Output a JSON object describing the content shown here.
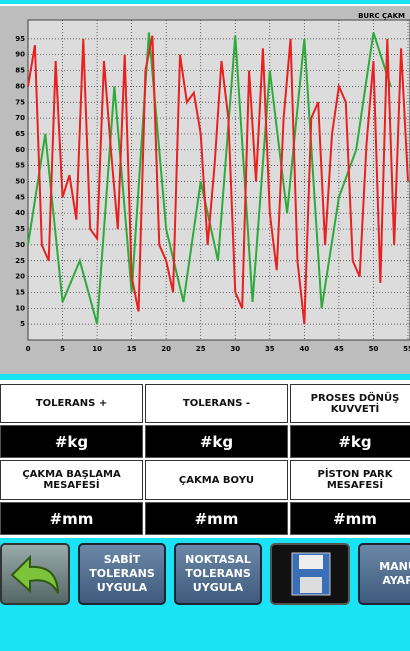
{
  "chart_data": {
    "type": "line",
    "title": "BURC ÇAKM",
    "xlim": [
      0,
      55
    ],
    "xticks": [
      0,
      5,
      10,
      15,
      20,
      25,
      30,
      35,
      40,
      45,
      50,
      55
    ],
    "ylim": [
      0,
      100
    ],
    "yticks": [
      5,
      10,
      15,
      20,
      25,
      30,
      35,
      40,
      45,
      50,
      55,
      60,
      65,
      70,
      75,
      80,
      85,
      90,
      95
    ],
    "grid": true,
    "series": [
      {
        "color": "#2eaa3c",
        "x": [
          0,
          2.5,
          5,
          7.5,
          10,
          12.5,
          15,
          17.5,
          20,
          22.5,
          25,
          27.5,
          30,
          32.5,
          35,
          37.5,
          40,
          42.5,
          45,
          47.5,
          50,
          52.5
        ],
        "values": [
          30,
          65,
          12,
          25,
          5,
          80,
          15,
          97,
          35,
          12,
          50,
          25,
          96,
          12,
          85,
          40,
          95,
          10,
          45,
          60,
          97,
          80
        ]
      },
      {
        "color": "#e82020",
        "x": [
          0,
          1,
          2,
          3,
          4,
          5,
          6,
          7,
          8,
          9,
          10,
          11,
          12,
          13,
          14,
          15,
          16,
          17,
          18,
          19,
          20,
          21,
          22,
          23,
          24,
          25,
          26,
          27,
          28,
          29,
          30,
          31,
          32,
          33,
          34,
          35,
          36,
          37,
          38,
          39,
          40,
          41,
          42,
          43,
          44,
          45,
          46,
          47,
          48,
          49,
          50,
          51,
          52,
          53,
          54,
          55
        ],
        "values": [
          80,
          93,
          30,
          25,
          88,
          45,
          52,
          38,
          95,
          35,
          32,
          88,
          60,
          35,
          90,
          20,
          9,
          85,
          96,
          30,
          25,
          15,
          90,
          75,
          78,
          65,
          30,
          55,
          88,
          70,
          15,
          10,
          85,
          50,
          92,
          40,
          22,
          70,
          95,
          25,
          5,
          70,
          75,
          30,
          65,
          80,
          75,
          25,
          20,
          62,
          88,
          18,
          95,
          30,
          92,
          50
        ]
      }
    ]
  },
  "table": {
    "rows": [
      [
        "TOLERANS +",
        "TOLERANS -",
        "PROSES DÖNÜŞ KUVVETİ"
      ],
      [
        "#kg",
        "#kg",
        "#kg"
      ],
      [
        "ÇAKMA BAŞLAMA MESAFESİ",
        "ÇAKMA BOYU",
        "PİSTON PARK MESAFESİ"
      ],
      [
        "#mm",
        "#mm",
        "#mm"
      ]
    ]
  },
  "buttons": [
    "SABİT TOLERANS UYGULA",
    "NOKTASAL TOLERANS UYGULA",
    "MANU AYAR"
  ]
}
